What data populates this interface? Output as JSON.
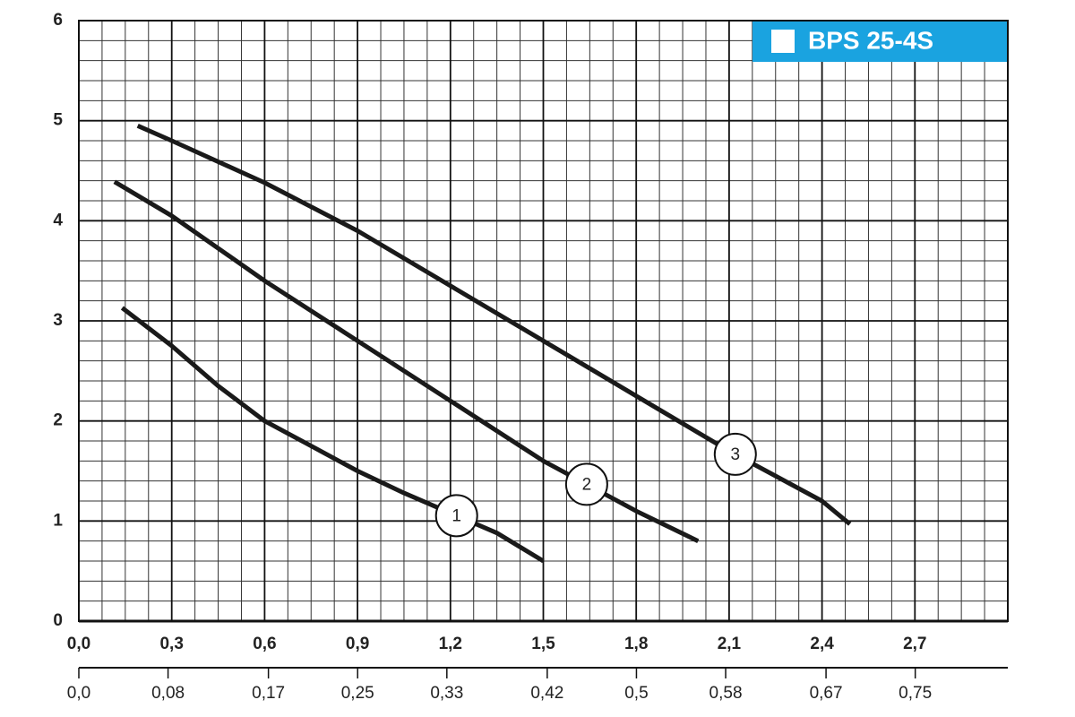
{
  "chart_data": {
    "type": "line",
    "title": "BPS 25-4S",
    "title_color": "#1aa3e0",
    "series": [
      {
        "name": "1",
        "color": "#1a1a1a",
        "x": [
          0.14,
          0.3,
          0.45,
          0.6,
          0.75,
          0.9,
          1.05,
          1.2,
          1.35,
          1.5
        ],
        "values": [
          3.13,
          2.75,
          2.35,
          2.0,
          1.75,
          1.5,
          1.28,
          1.08,
          0.88,
          0.6
        ]
      },
      {
        "name": "2",
        "color": "#1a1a1a",
        "x": [
          0.115,
          0.3,
          0.6,
          0.9,
          1.2,
          1.5,
          1.8,
          2.0
        ],
        "values": [
          4.39,
          4.05,
          3.4,
          2.8,
          2.2,
          1.6,
          1.1,
          0.8
        ]
      },
      {
        "name": "3",
        "color": "#1a1a1a",
        "x": [
          0.19,
          0.3,
          0.6,
          0.9,
          1.2,
          1.5,
          1.8,
          2.1,
          2.4,
          2.49
        ],
        "values": [
          4.95,
          4.8,
          4.38,
          3.9,
          3.35,
          2.8,
          2.25,
          1.7,
          1.2,
          0.97
        ]
      }
    ],
    "xlim": [
      0,
      3
    ],
    "ylim": [
      0,
      6
    ],
    "xticks": [
      {
        "value": 0,
        "label": "0,0"
      },
      {
        "value": 0.3,
        "label": "0,3"
      },
      {
        "value": 0.6,
        "label": "0,6"
      },
      {
        "value": 0.9,
        "label": "0,9"
      },
      {
        "value": 1.2,
        "label": "1,2"
      },
      {
        "value": 1.5,
        "label": "1,5"
      },
      {
        "value": 1.8,
        "label": "1,8"
      },
      {
        "value": 2.1,
        "label": "2,1"
      },
      {
        "value": 2.4,
        "label": "2,4"
      },
      {
        "value": 2.7,
        "label": "2,7"
      }
    ],
    "yticks": [
      0,
      1,
      2,
      3,
      4,
      5,
      6
    ],
    "x2lim": [
      0,
      0.833
    ],
    "x2ticks": [
      {
        "value": 0,
        "label": "0,0"
      },
      {
        "value": 0.08,
        "label": "0,08"
      },
      {
        "value": 0.17,
        "label": "0,17"
      },
      {
        "value": 0.25,
        "label": "0,25"
      },
      {
        "value": 0.33,
        "label": "0,33"
      },
      {
        "value": 0.42,
        "label": "0,42"
      },
      {
        "value": 0.5,
        "label": "0,5"
      },
      {
        "value": 0.58,
        "label": "0,58"
      },
      {
        "value": 0.67,
        "label": "0,67"
      },
      {
        "value": 0.75,
        "label": "0,75"
      }
    ],
    "grid": true
  }
}
